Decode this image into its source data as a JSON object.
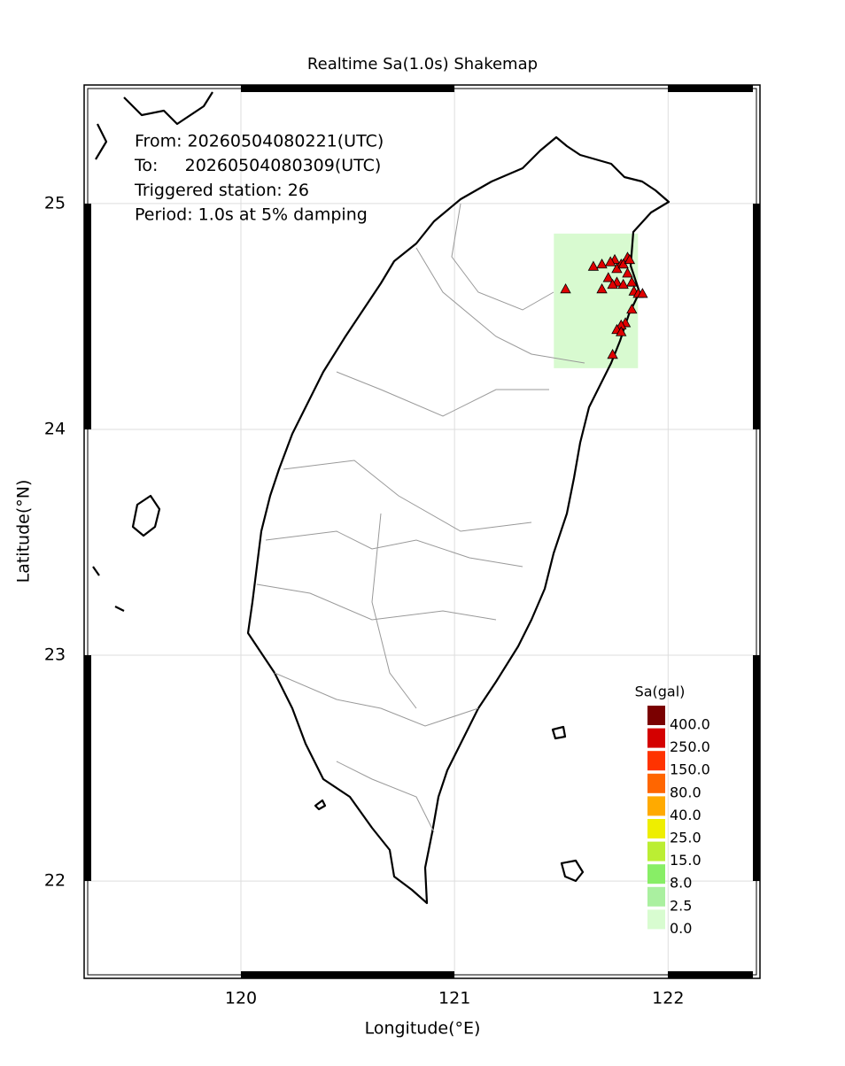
{
  "chart_data": {
    "type": "map",
    "title": "Realtime Sa(1.0s) Shakemap",
    "x_label": "Longitude(°E)",
    "y_label": "Latitude(°N)",
    "xlim": [
      119.266,
      122.43
    ],
    "ylim": [
      21.569,
      25.525
    ],
    "xticks": [
      120,
      121,
      122
    ],
    "yticks": [
      22,
      23,
      24,
      25
    ],
    "grid": true,
    "annotations": [
      "From: 20260504080221(UTC)",
      "To:     20260504080309(UTC)",
      "Triggered station: 26",
      "Period: 1.0s at 5% damping"
    ],
    "shaded_area": {
      "lon": [
        121.465,
        121.859
      ],
      "lat": [
        24.271,
        24.867
      ],
      "color": "#d8fad0"
    },
    "stations": {
      "color": "#e00000",
      "lon": [
        121.52,
        121.65,
        121.69,
        121.75,
        121.78,
        121.81,
        121.76,
        121.79,
        121.72,
        121.76,
        121.81,
        121.83,
        121.69,
        121.74,
        121.79,
        121.84,
        121.86,
        121.83,
        121.8,
        121.78,
        121.76,
        121.74,
        121.82,
        121.78,
        121.73,
        121.88
      ],
      "lat": [
        24.62,
        24.72,
        24.73,
        24.75,
        24.73,
        24.76,
        24.71,
        24.73,
        24.67,
        24.65,
        24.69,
        24.65,
        24.62,
        24.64,
        24.64,
        24.61,
        24.6,
        24.53,
        24.47,
        24.46,
        24.44,
        24.33,
        24.75,
        24.43,
        24.74,
        24.6
      ]
    },
    "legend": {
      "title": "Sa(gal)",
      "labels": [
        "400.0",
        "250.0",
        "150.0",
        "80.0",
        "40.0",
        "25.0",
        "15.0",
        "8.0",
        "2.5",
        "0.0"
      ],
      "colors": [
        "#7a0000",
        "#d40000",
        "#ff3300",
        "#ff6600",
        "#ffaa00",
        "#eeee00",
        "#bbee33",
        "#88ee66",
        "#aaf0a0",
        "#d8fcd0"
      ]
    }
  }
}
